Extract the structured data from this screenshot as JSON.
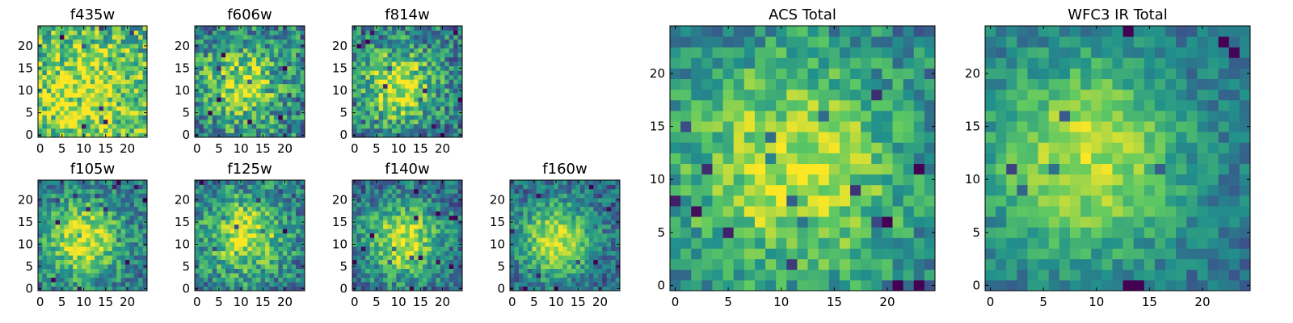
{
  "figure": {
    "colormap": "viridis",
    "colors": [
      "#440154",
      "#3b528b",
      "#21918c",
      "#5ec962",
      "#fde725"
    ],
    "panels": [
      {
        "title": "f435w",
        "ticks": [
          0,
          5,
          10,
          15,
          20
        ],
        "size": 25,
        "center": [
          10,
          9
        ],
        "spread": 9,
        "amp": 0.3,
        "base": 0.62,
        "noise": 0.3,
        "seed": 11
      },
      {
        "title": "f606w",
        "ticks": [
          0,
          5,
          10,
          15,
          20
        ],
        "size": 25,
        "center": [
          10,
          11
        ],
        "spread": 6,
        "amp": 0.45,
        "base": 0.45,
        "noise": 0.3,
        "seed": 23
      },
      {
        "title": "f814w",
        "ticks": [
          0,
          5,
          10,
          15,
          20
        ],
        "size": 25,
        "center": [
          10,
          11
        ],
        "spread": 6,
        "amp": 0.55,
        "base": 0.4,
        "noise": 0.28,
        "seed": 37
      },
      {
        "title": "f105w",
        "ticks": [
          0,
          5,
          10,
          15,
          20
        ],
        "size": 25,
        "center": [
          10,
          11
        ],
        "spread": 6.5,
        "amp": 0.55,
        "base": 0.38,
        "noise": 0.22,
        "seed": 41
      },
      {
        "title": "f125w",
        "ticks": [
          0,
          5,
          10,
          15,
          20
        ],
        "size": 25,
        "center": [
          11,
          12
        ],
        "spread": 6.5,
        "amp": 0.5,
        "base": 0.4,
        "noise": 0.25,
        "seed": 53
      },
      {
        "title": "f140w",
        "ticks": [
          0,
          5,
          10,
          15,
          20
        ],
        "size": 25,
        "center": [
          11,
          11
        ],
        "spread": 6,
        "amp": 0.58,
        "base": 0.35,
        "noise": 0.22,
        "seed": 67
      },
      {
        "title": "f160w",
        "ticks": [
          0,
          5,
          10,
          15,
          20
        ],
        "size": 25,
        "center": [
          10,
          11
        ],
        "spread": 6,
        "amp": 0.6,
        "base": 0.33,
        "noise": 0.2,
        "seed": 79
      },
      {
        "title": "ACS Total",
        "ticks": [
          0,
          5,
          10,
          15,
          20
        ],
        "size": 25,
        "center": [
          11,
          11
        ],
        "spread": 8,
        "amp": 0.5,
        "base": 0.4,
        "noise": 0.2,
        "seed": 83
      },
      {
        "title": "WFC3 IR Total",
        "ticks": [
          0,
          5,
          10,
          15,
          20
        ],
        "size": 25,
        "center": [
          9,
          12
        ],
        "spread": 7,
        "amp": 0.55,
        "base": 0.35,
        "noise": 0.14,
        "seed": 97
      }
    ]
  },
  "chart_data": [
    {
      "type": "heatmap",
      "title": "f435w",
      "x": [
        0,
        24
      ],
      "y": [
        0,
        24
      ],
      "xticks": [
        0,
        5,
        10,
        15,
        20
      ],
      "yticks": [
        0,
        5,
        10,
        15,
        20
      ],
      "grid": false,
      "description_values": "25x25 noisy image; faint source near (10, 9)"
    },
    {
      "type": "heatmap",
      "title": "f606w",
      "x": [
        0,
        24
      ],
      "y": [
        0,
        24
      ],
      "xticks": [
        0,
        5,
        10,
        15,
        20
      ],
      "yticks": [
        0,
        5,
        10,
        15,
        20
      ],
      "grid": false
    },
    {
      "type": "heatmap",
      "title": "f814w",
      "x": [
        0,
        24
      ],
      "y": [
        0,
        24
      ],
      "xticks": [
        0,
        5,
        10,
        15,
        20
      ],
      "yticks": [
        0,
        5,
        10,
        15,
        20
      ],
      "grid": false
    },
    {
      "type": "heatmap",
      "title": "f105w",
      "x": [
        0,
        24
      ],
      "y": [
        0,
        24
      ],
      "xticks": [
        0,
        5,
        10,
        15,
        20
      ],
      "yticks": [
        0,
        5,
        10,
        15,
        20
      ],
      "grid": false
    },
    {
      "type": "heatmap",
      "title": "f125w",
      "x": [
        0,
        24
      ],
      "y": [
        0,
        24
      ],
      "xticks": [
        0,
        5,
        10,
        15,
        20
      ],
      "yticks": [
        0,
        5,
        10,
        15,
        20
      ],
      "grid": false
    },
    {
      "type": "heatmap",
      "title": "f140w",
      "x": [
        0,
        24
      ],
      "y": [
        0,
        24
      ],
      "xticks": [
        0,
        5,
        10,
        15,
        20
      ],
      "yticks": [
        0,
        5,
        10,
        15,
        20
      ],
      "grid": false
    },
    {
      "type": "heatmap",
      "title": "f160w",
      "x": [
        0,
        24
      ],
      "y": [
        0,
        24
      ],
      "xticks": [
        0,
        5,
        10,
        15,
        20
      ],
      "yticks": [
        0,
        5,
        10,
        15,
        20
      ],
      "grid": false
    },
    {
      "type": "heatmap",
      "title": "ACS Total",
      "x": [
        0,
        24
      ],
      "y": [
        0,
        24
      ],
      "xticks": [
        0,
        5,
        10,
        15,
        20
      ],
      "yticks": [
        0,
        5,
        10,
        15,
        20
      ],
      "grid": false
    },
    {
      "type": "heatmap",
      "title": "WFC3 IR Total",
      "x": [
        0,
        24
      ],
      "y": [
        0,
        24
      ],
      "xticks": [
        0,
        5,
        10,
        15,
        20
      ],
      "yticks": [
        0,
        5,
        10,
        15,
        20
      ],
      "grid": false
    }
  ]
}
